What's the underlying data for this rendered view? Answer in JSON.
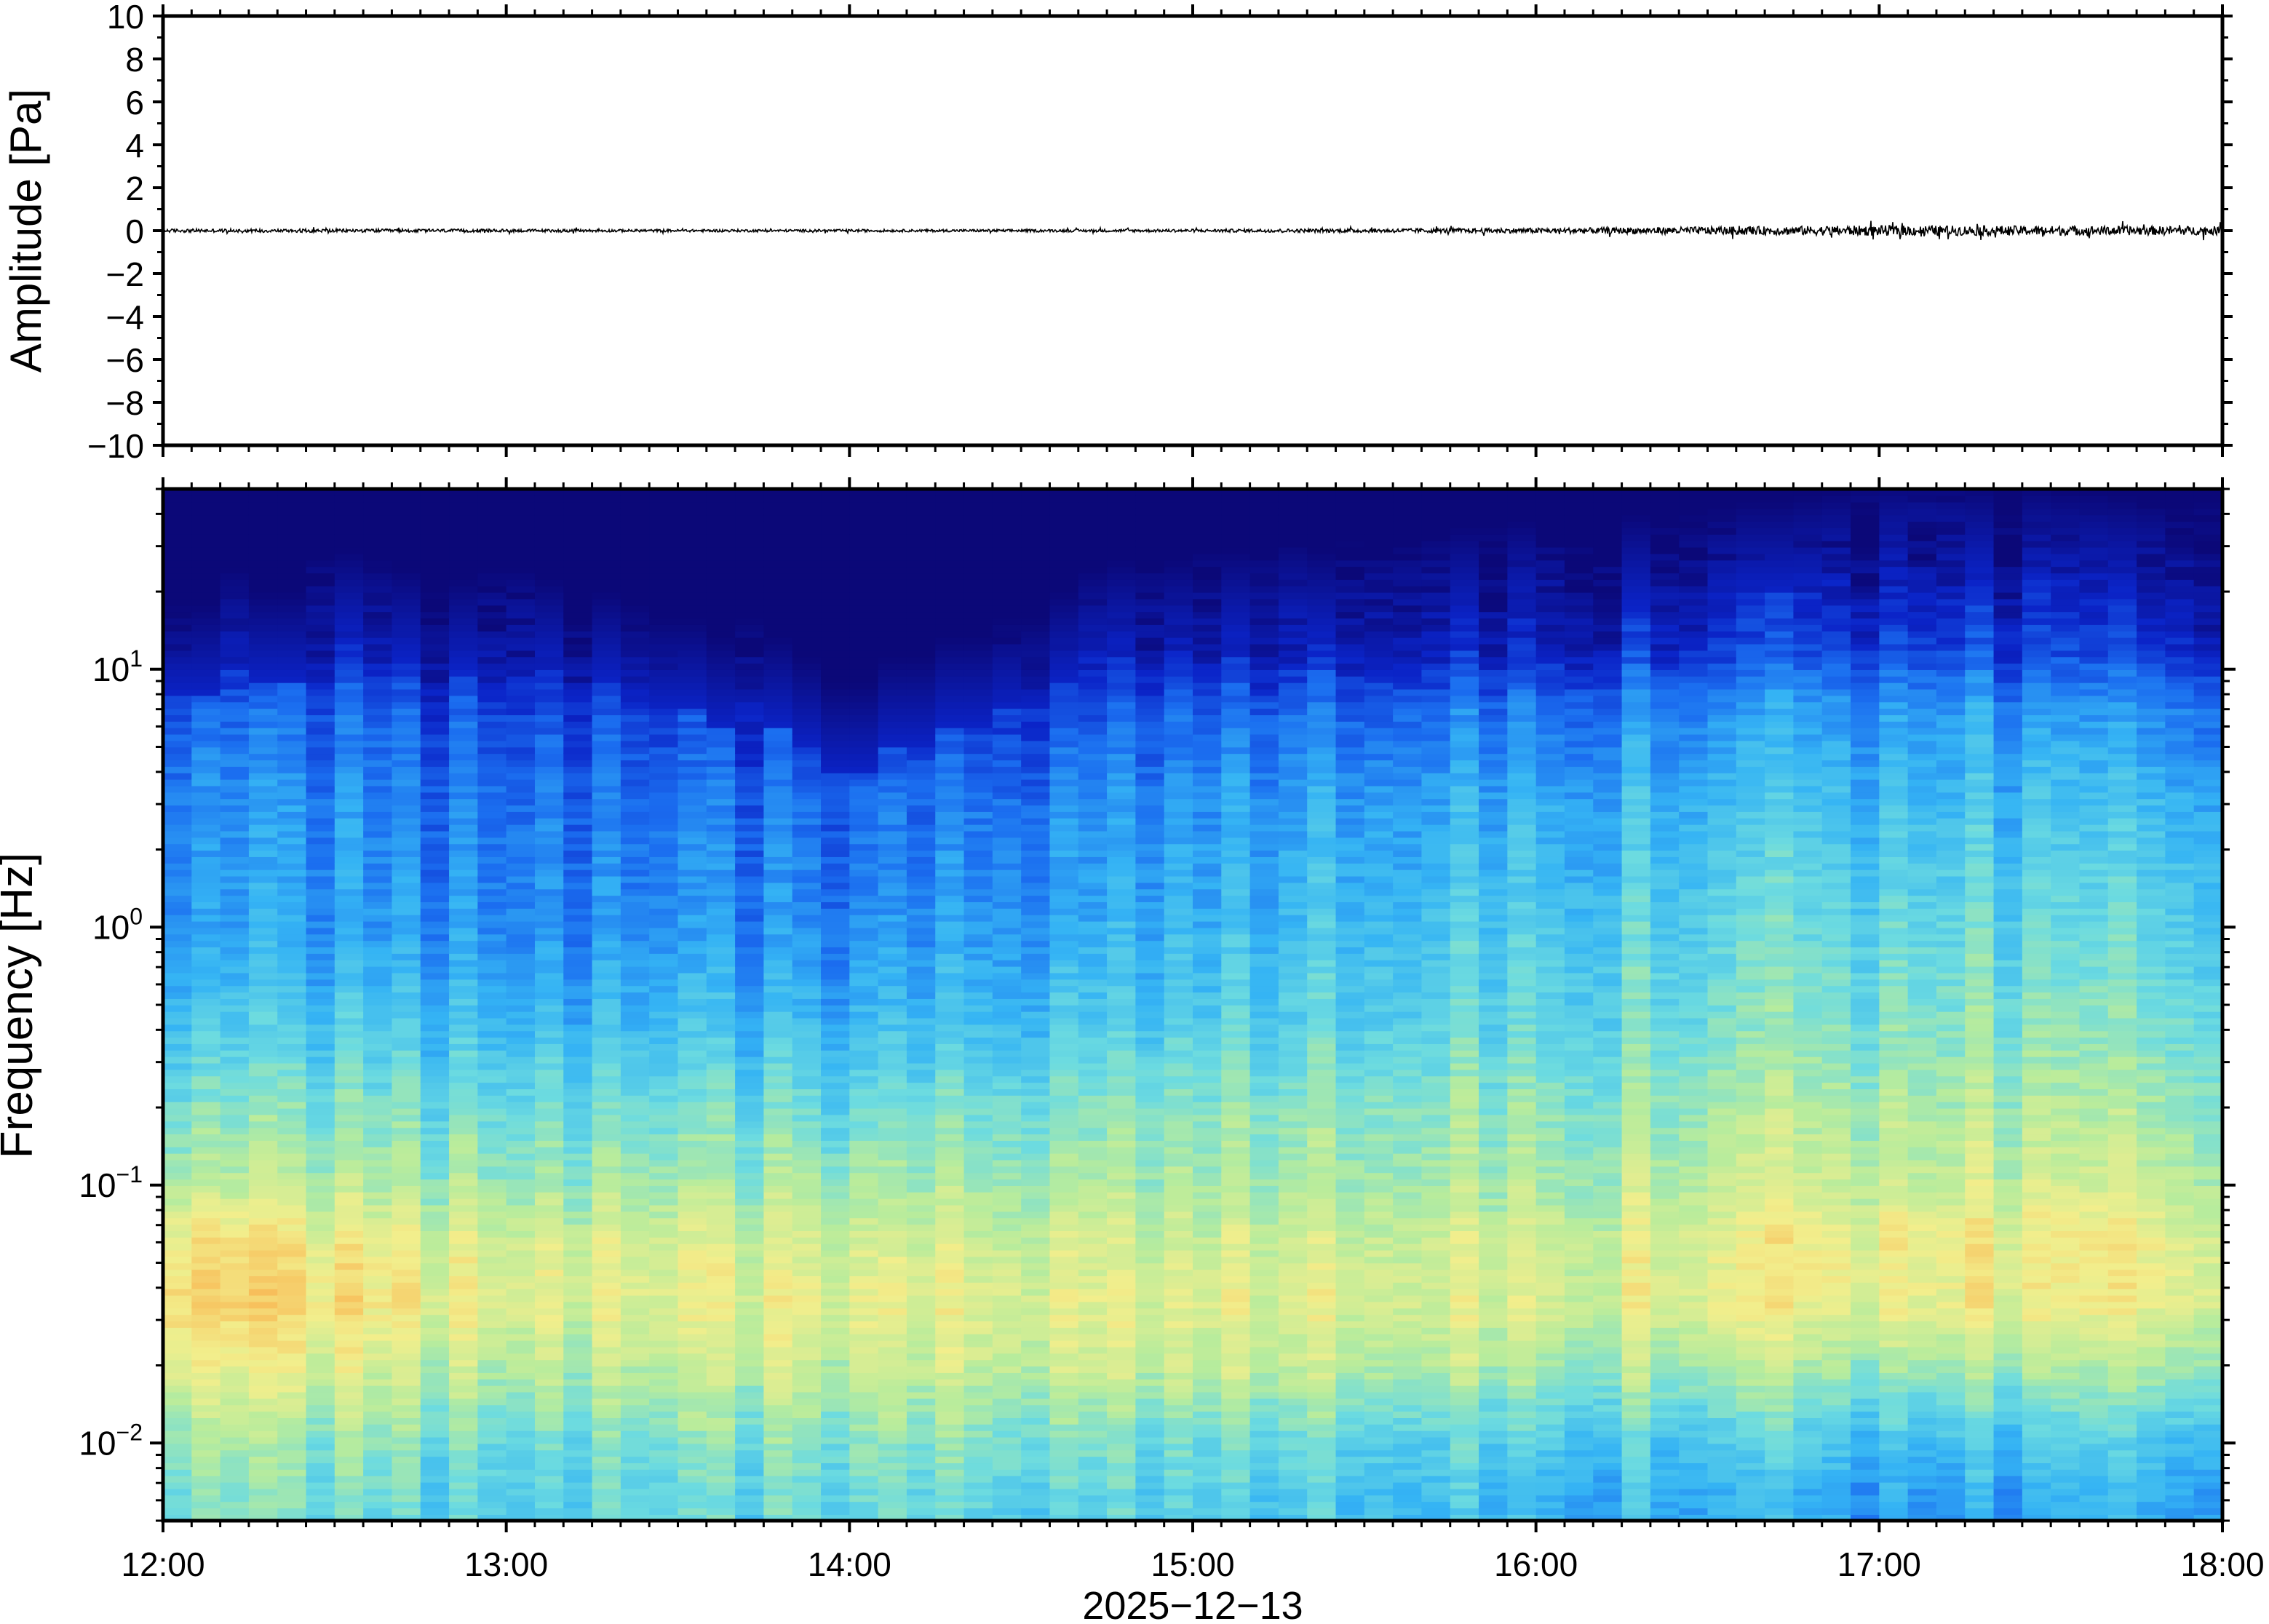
{
  "chart_data": [
    {
      "type": "line",
      "panel": "waveform",
      "ylabel": "Amplitude [Pa]",
      "ylim": [
        -10,
        10
      ],
      "yticks": [
        10,
        8,
        6,
        4,
        2,
        0,
        -2,
        -4,
        -6,
        -8,
        -10
      ],
      "ytick_labels": [
        "10",
        "8",
        "6",
        "4",
        "2",
        "0",
        "−2",
        "−4",
        "−6",
        "−8",
        "−10"
      ],
      "xlim": [
        "12:00",
        "18:00"
      ],
      "grid": false,
      "series": [
        {
          "x_hours": [
            12.0,
            12.5,
            13.0,
            13.5,
            14.0,
            14.5,
            15.0,
            15.5,
            16.0,
            16.5,
            17.0,
            17.5,
            18.0
          ],
          "envelope_pa": [
            0.08,
            0.08,
            0.07,
            0.06,
            0.06,
            0.06,
            0.07,
            0.09,
            0.12,
            0.18,
            0.24,
            0.22,
            0.2
          ],
          "center_pa": 0
        }
      ],
      "color": "#000000"
    },
    {
      "type": "heatmap",
      "panel": "spectrogram",
      "ylabel": "Frequency [Hz]",
      "yscale": "log",
      "ylim": [
        0.005,
        50
      ],
      "yticks": [
        0.01,
        0.1,
        1,
        10
      ],
      "ytick_labels": [
        {
          "base": "10",
          "exp": "−2"
        },
        {
          "base": "10",
          "exp": "−1"
        },
        {
          "base": "10",
          "exp": "0"
        },
        {
          "base": "10",
          "exp": "1"
        }
      ],
      "xlim": [
        "12:00",
        "18:00"
      ],
      "xticks": [
        "12:00",
        "13:00",
        "14:00",
        "15:00",
        "16:00",
        "17:00",
        "18:00"
      ],
      "xlabel": "2025−12−13",
      "colormap": [
        "#0b0878",
        "#0b24c8",
        "#1b6ef0",
        "#35b4f4",
        "#6cdbe0",
        "#b8ec9c",
        "#f2ee8c",
        "#f7c25e",
        "#f48a3a"
      ],
      "grid": false,
      "time_columns": 72,
      "column_hours_start": 12.0,
      "column_hours_step": 0.0833,
      "noise_ceiling_hz": [
        8,
        8,
        11,
        9,
        9,
        13,
        13,
        12,
        11,
        9,
        10,
        11,
        11,
        10,
        8,
        9,
        8,
        7,
        7,
        6,
        7,
        6,
        5,
        4,
        4,
        5,
        5,
        6,
        6,
        7,
        7,
        9,
        11,
        12,
        12,
        12,
        13,
        13,
        13,
        14,
        13,
        14,
        14,
        14,
        15,
        16,
        16,
        17,
        16,
        16,
        17,
        18,
        17,
        18,
        19,
        20,
        20,
        21,
        22,
        23,
        24,
        25,
        24,
        23,
        24,
        23,
        22,
        22,
        21,
        20,
        21,
        20
      ],
      "levels_db": {
        "frequency_hz": [
          0.006,
          0.01,
          0.02,
          0.035,
          0.06,
          0.1,
          0.2,
          0.4,
          1,
          3,
          7,
          12,
          30
        ],
        "by_hour": [
          {
            "hour": 12.0,
            "values": [
              0.55,
              0.6,
              0.75,
              0.85,
              0.8,
              0.65,
              0.55,
              0.45,
              0.35,
              0.32,
              0.25,
              0.1,
              0.02
            ]
          },
          {
            "hour": 13.0,
            "values": [
              0.45,
              0.5,
              0.62,
              0.7,
              0.68,
              0.58,
              0.5,
              0.4,
              0.3,
              0.26,
              0.18,
              0.06,
              0.02
            ]
          },
          {
            "hour": 14.0,
            "values": [
              0.5,
              0.55,
              0.66,
              0.72,
              0.68,
              0.6,
              0.5,
              0.4,
              0.3,
              0.24,
              0.14,
              0.05,
              0.02
            ]
          },
          {
            "hour": 15.0,
            "values": [
              0.45,
              0.5,
              0.65,
              0.7,
              0.66,
              0.6,
              0.55,
              0.45,
              0.38,
              0.32,
              0.22,
              0.08,
              0.02
            ]
          },
          {
            "hour": 16.0,
            "values": [
              0.4,
              0.45,
              0.62,
              0.7,
              0.68,
              0.62,
              0.57,
              0.5,
              0.45,
              0.38,
              0.28,
              0.12,
              0.03
            ]
          },
          {
            "hour": 17.0,
            "values": [
              0.35,
              0.42,
              0.6,
              0.74,
              0.76,
              0.68,
              0.62,
              0.56,
              0.5,
              0.42,
              0.34,
              0.2,
              0.05
            ]
          },
          {
            "hour": 18.0,
            "values": [
              0.38,
              0.44,
              0.62,
              0.74,
              0.74,
              0.66,
              0.6,
              0.54,
              0.48,
              0.4,
              0.3,
              0.15,
              0.04
            ]
          }
        ]
      }
    }
  ]
}
